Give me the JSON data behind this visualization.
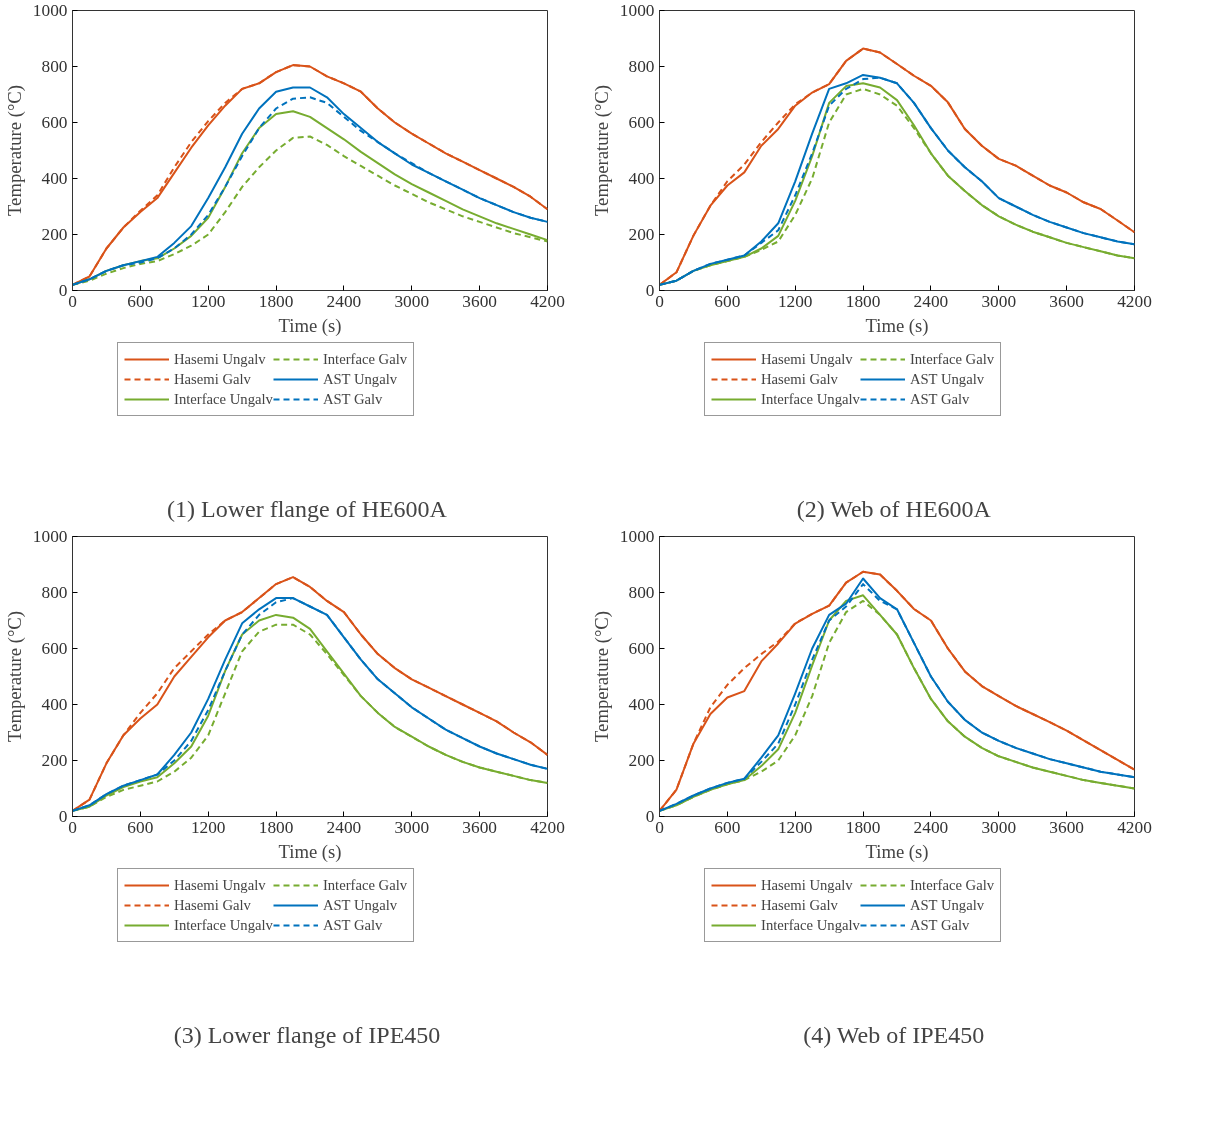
{
  "chart_data": [
    {
      "type": "line",
      "title": "(1)  Lower flange of HE600A",
      "xlabel": "Time (s)",
      "ylabel": "Temperature (°C)",
      "xlim": [
        0,
        4200
      ],
      "xticks": [
        0,
        600,
        1200,
        1800,
        2400,
        3000,
        3600,
        4200
      ],
      "ylim": [
        0,
        1000
      ],
      "yticks": [
        0,
        200,
        400,
        600,
        800,
        1000
      ],
      "grid": false,
      "legend": "bottom",
      "x": [
        0,
        150,
        300,
        450,
        600,
        750,
        900,
        1050,
        1200,
        1350,
        1500,
        1650,
        1800,
        1950,
        2100,
        2250,
        2400,
        2550,
        2700,
        2850,
        3000,
        3150,
        3300,
        3450,
        3600,
        3750,
        3900,
        4050,
        4200
      ],
      "series": [
        {
          "name": "Hasemi Ungalv",
          "color": "#d95319",
          "line_style": "solid",
          "values": [
            20,
            50,
            150,
            225,
            280,
            330,
            420,
            510,
            590,
            660,
            720,
            740,
            780,
            805,
            800,
            765,
            740,
            710,
            650,
            600,
            560,
            525,
            490,
            460,
            430,
            400,
            370,
            335,
            290
          ]
        },
        {
          "name": "Hasemi Galv",
          "color": "#d95319",
          "line_style": "dashed",
          "values": [
            20,
            50,
            150,
            225,
            285,
            340,
            440,
            530,
            605,
            670,
            720,
            740,
            780,
            805,
            800,
            765,
            740,
            710,
            650,
            600,
            560,
            525,
            490,
            460,
            430,
            400,
            370,
            335,
            290
          ]
        },
        {
          "name": "Interface Ungalv",
          "color": "#77ac30",
          "line_style": "solid",
          "values": [
            20,
            40,
            70,
            90,
            105,
            115,
            150,
            195,
            260,
            370,
            490,
            580,
            630,
            640,
            620,
            580,
            540,
            495,
            455,
            415,
            380,
            350,
            320,
            290,
            265,
            240,
            220,
            200,
            180
          ]
        },
        {
          "name": "Interface Galv",
          "color": "#77ac30",
          "line_style": "dashed",
          "values": [
            20,
            35,
            60,
            80,
            95,
            105,
            130,
            160,
            200,
            280,
            370,
            440,
            500,
            545,
            550,
            520,
            480,
            445,
            410,
            375,
            345,
            315,
            290,
            265,
            245,
            225,
            205,
            190,
            175
          ]
        },
        {
          "name": "AST Ungalv",
          "color": "#0072bd",
          "line_style": "solid",
          "values": [
            20,
            40,
            70,
            90,
            105,
            120,
            170,
            230,
            330,
            440,
            560,
            650,
            710,
            725,
            725,
            690,
            630,
            580,
            530,
            490,
            450,
            420,
            390,
            360,
            330,
            305,
            280,
            260,
            245
          ]
        },
        {
          "name": "AST Galv",
          "color": "#0072bd",
          "line_style": "dashed",
          "values": [
            20,
            40,
            70,
            90,
            100,
            115,
            150,
            200,
            270,
            370,
            480,
            580,
            650,
            685,
            690,
            670,
            620,
            570,
            530,
            490,
            455,
            420,
            390,
            360,
            330,
            305,
            280,
            260,
            245
          ]
        }
      ]
    },
    {
      "type": "line",
      "title": "(2)  Web of HE600A",
      "xlabel": "Time (s)",
      "ylabel": "Temperature (°C)",
      "xlim": [
        0,
        4200
      ],
      "xticks": [
        0,
        600,
        1200,
        1800,
        2400,
        3000,
        3600,
        4200
      ],
      "ylim": [
        0,
        1000
      ],
      "yticks": [
        0,
        200,
        400,
        600,
        800,
        1000
      ],
      "grid": false,
      "legend": "bottom",
      "x": [
        0,
        150,
        300,
        450,
        600,
        750,
        900,
        1050,
        1200,
        1350,
        1500,
        1650,
        1800,
        1950,
        2100,
        2250,
        2400,
        2550,
        2700,
        2850,
        3000,
        3150,
        3300,
        3450,
        3600,
        3750,
        3900,
        4050,
        4200
      ],
      "series": [
        {
          "name": "Hasemi Ungalv",
          "color": "#d95319",
          "line_style": "solid",
          "values": [
            20,
            65,
            196,
            303,
            375,
            422,
            517,
            577,
            660,
            707,
            737,
            820,
            864,
            850,
            809,
            767,
            731,
            672,
            577,
            517,
            470,
            446,
            410,
            375,
            350,
            315,
            291,
            250,
            208
          ]
        },
        {
          "name": "Hasemi Galv",
          "color": "#d95319",
          "line_style": "dashed",
          "values": [
            20,
            65,
            196,
            303,
            390,
            450,
            530,
            600,
            665,
            707,
            737,
            820,
            864,
            850,
            809,
            767,
            731,
            672,
            577,
            517,
            470,
            446,
            410,
            375,
            350,
            315,
            291,
            250,
            208
          ]
        },
        {
          "name": "Interface Ungalv",
          "color": "#77ac30",
          "line_style": "solid",
          "values": [
            20,
            35,
            70,
            90,
            105,
            120,
            150,
            195,
            320,
            480,
            670,
            730,
            740,
            725,
            680,
            590,
            490,
            410,
            355,
            305,
            265,
            235,
            210,
            190,
            170,
            155,
            140,
            125,
            115
          ]
        },
        {
          "name": "Interface Galv",
          "color": "#77ac30",
          "line_style": "dashed",
          "values": [
            20,
            35,
            70,
            90,
            105,
            120,
            145,
            175,
            270,
            400,
            600,
            700,
            720,
            700,
            660,
            580,
            490,
            410,
            355,
            305,
            265,
            235,
            210,
            190,
            170,
            155,
            140,
            125,
            115
          ]
        },
        {
          "name": "AST Ungalv",
          "color": "#0072bd",
          "line_style": "solid",
          "values": [
            20,
            35,
            70,
            95,
            110,
            125,
            175,
            240,
            390,
            560,
            720,
            740,
            770,
            760,
            740,
            670,
            580,
            500,
            440,
            390,
            330,
            300,
            270,
            245,
            225,
            205,
            190,
            175,
            165
          ]
        },
        {
          "name": "AST Galv",
          "color": "#0072bd",
          "line_style": "dashed",
          "values": [
            20,
            35,
            70,
            95,
            110,
            125,
            170,
            215,
            340,
            490,
            660,
            720,
            755,
            760,
            740,
            670,
            580,
            500,
            440,
            390,
            330,
            300,
            270,
            245,
            225,
            205,
            190,
            175,
            165
          ]
        }
      ]
    },
    {
      "type": "line",
      "title": "(3)  Lower flange of IPE450",
      "xlabel": "Time (s)",
      "ylabel": "Temperature (°C)",
      "xlim": [
        0,
        4200
      ],
      "xticks": [
        0,
        600,
        1200,
        1800,
        2400,
        3000,
        3600,
        4200
      ],
      "ylim": [
        0,
        1000
      ],
      "yticks": [
        0,
        200,
        400,
        600,
        800,
        1000
      ],
      "grid": false,
      "legend": "bottom",
      "x": [
        0,
        150,
        300,
        450,
        600,
        750,
        900,
        1050,
        1200,
        1350,
        1500,
        1650,
        1800,
        1950,
        2100,
        2250,
        2400,
        2550,
        2700,
        2850,
        3000,
        3150,
        3300,
        3450,
        3600,
        3750,
        3900,
        4050,
        4200
      ],
      "series": [
        {
          "name": "Hasemi Ungalv",
          "color": "#d95319",
          "line_style": "solid",
          "values": [
            20,
            60,
            190,
            290,
            350,
            400,
            500,
            570,
            640,
            700,
            730,
            780,
            830,
            855,
            820,
            770,
            730,
            650,
            580,
            530,
            490,
            460,
            430,
            400,
            370,
            340,
            300,
            265,
            220
          ]
        },
        {
          "name": "Hasemi Galv",
          "color": "#d95319",
          "line_style": "dashed",
          "values": [
            20,
            60,
            190,
            290,
            370,
            440,
            530,
            590,
            650,
            700,
            730,
            780,
            830,
            855,
            820,
            770,
            730,
            650,
            580,
            530,
            490,
            460,
            430,
            400,
            370,
            340,
            300,
            265,
            220
          ]
        },
        {
          "name": "Interface Ungalv",
          "color": "#77ac30",
          "line_style": "solid",
          "values": [
            20,
            35,
            75,
            105,
            125,
            140,
            190,
            250,
            360,
            520,
            650,
            700,
            720,
            710,
            670,
            590,
            510,
            430,
            370,
            320,
            285,
            250,
            220,
            195,
            175,
            160,
            145,
            130,
            120
          ]
        },
        {
          "name": "Interface Galv",
          "color": "#77ac30",
          "line_style": "dashed",
          "values": [
            20,
            35,
            70,
            95,
            110,
            125,
            160,
            210,
            290,
            440,
            590,
            660,
            685,
            685,
            650,
            580,
            505,
            430,
            370,
            320,
            285,
            250,
            220,
            195,
            175,
            160,
            145,
            130,
            120
          ]
        },
        {
          "name": "AST Ungalv",
          "color": "#0072bd",
          "line_style": "solid",
          "values": [
            20,
            40,
            80,
            110,
            130,
            150,
            220,
            300,
            420,
            560,
            690,
            740,
            780,
            780,
            750,
            720,
            640,
            560,
            490,
            440,
            390,
            350,
            310,
            280,
            250,
            225,
            205,
            185,
            170
          ]
        },
        {
          "name": "AST Galv",
          "color": "#0072bd",
          "line_style": "dashed",
          "values": [
            20,
            40,
            80,
            110,
            130,
            150,
            200,
            270,
            380,
            520,
            650,
            720,
            765,
            780,
            750,
            720,
            640,
            560,
            490,
            440,
            390,
            350,
            310,
            280,
            250,
            225,
            205,
            185,
            170
          ]
        }
      ]
    },
    {
      "type": "line",
      "title": "(4)  Web of IPE450",
      "xlabel": "Time (s)",
      "ylabel": "Temperature (°C)",
      "xlim": [
        0,
        4200
      ],
      "xticks": [
        0,
        600,
        1200,
        1800,
        2400,
        3000,
        3600,
        4200
      ],
      "ylim": [
        0,
        1000
      ],
      "yticks": [
        0,
        200,
        400,
        600,
        800,
        1000
      ],
      "grid": false,
      "legend": "bottom",
      "x": [
        0,
        150,
        300,
        450,
        600,
        750,
        900,
        1050,
        1200,
        1350,
        1500,
        1650,
        1800,
        1950,
        2100,
        2250,
        2400,
        2550,
        2700,
        2850,
        3000,
        3150,
        3300,
        3450,
        3600,
        3750,
        3900,
        4050,
        4200
      ],
      "series": [
        {
          "name": "Hasemi Ungalv",
          "color": "#d95319",
          "line_style": "solid",
          "values": [
            20,
            96,
            260,
            366,
            425,
            448,
            554,
            618,
            689,
            724,
            753,
            835,
            874,
            864,
            806,
            741,
            700,
            600,
            518,
            466,
            430,
            395,
            366,
            337,
            307,
            272,
            237,
            202,
            167
          ]
        },
        {
          "name": "Hasemi Galv",
          "color": "#d95319",
          "line_style": "dashed",
          "values": [
            20,
            96,
            260,
            390,
            470,
            530,
            580,
            625,
            690,
            724,
            753,
            835,
            874,
            864,
            806,
            741,
            700,
            600,
            518,
            466,
            430,
            395,
            366,
            337,
            307,
            272,
            237,
            202,
            167
          ]
        },
        {
          "name": "Interface Ungalv",
          "color": "#77ac30",
          "line_style": "solid",
          "values": [
            20,
            40,
            70,
            95,
            115,
            130,
            180,
            240,
            370,
            540,
            700,
            770,
            790,
            720,
            650,
            530,
            420,
            340,
            285,
            245,
            215,
            195,
            175,
            160,
            145,
            130,
            120,
            110,
            100
          ]
        },
        {
          "name": "Interface Galv",
          "color": "#77ac30",
          "line_style": "dashed",
          "values": [
            20,
            40,
            70,
            95,
            115,
            130,
            160,
            200,
            290,
            430,
            620,
            730,
            770,
            720,
            650,
            530,
            420,
            340,
            285,
            245,
            215,
            195,
            175,
            160,
            145,
            130,
            120,
            110,
            100
          ]
        },
        {
          "name": "AST Ungalv",
          "color": "#0072bd",
          "line_style": "solid",
          "values": [
            20,
            45,
            75,
            100,
            120,
            135,
            210,
            290,
            440,
            600,
            720,
            760,
            850,
            780,
            740,
            620,
            500,
            410,
            345,
            300,
            270,
            245,
            225,
            205,
            190,
            175,
            160,
            150,
            140
          ]
        },
        {
          "name": "AST Galv",
          "color": "#0072bd",
          "line_style": "dashed",
          "values": [
            20,
            45,
            75,
            100,
            120,
            135,
            195,
            260,
            400,
            560,
            700,
            750,
            830,
            770,
            740,
            620,
            500,
            410,
            345,
            300,
            270,
            245,
            225,
            205,
            190,
            175,
            160,
            150,
            140
          ]
        }
      ]
    }
  ]
}
